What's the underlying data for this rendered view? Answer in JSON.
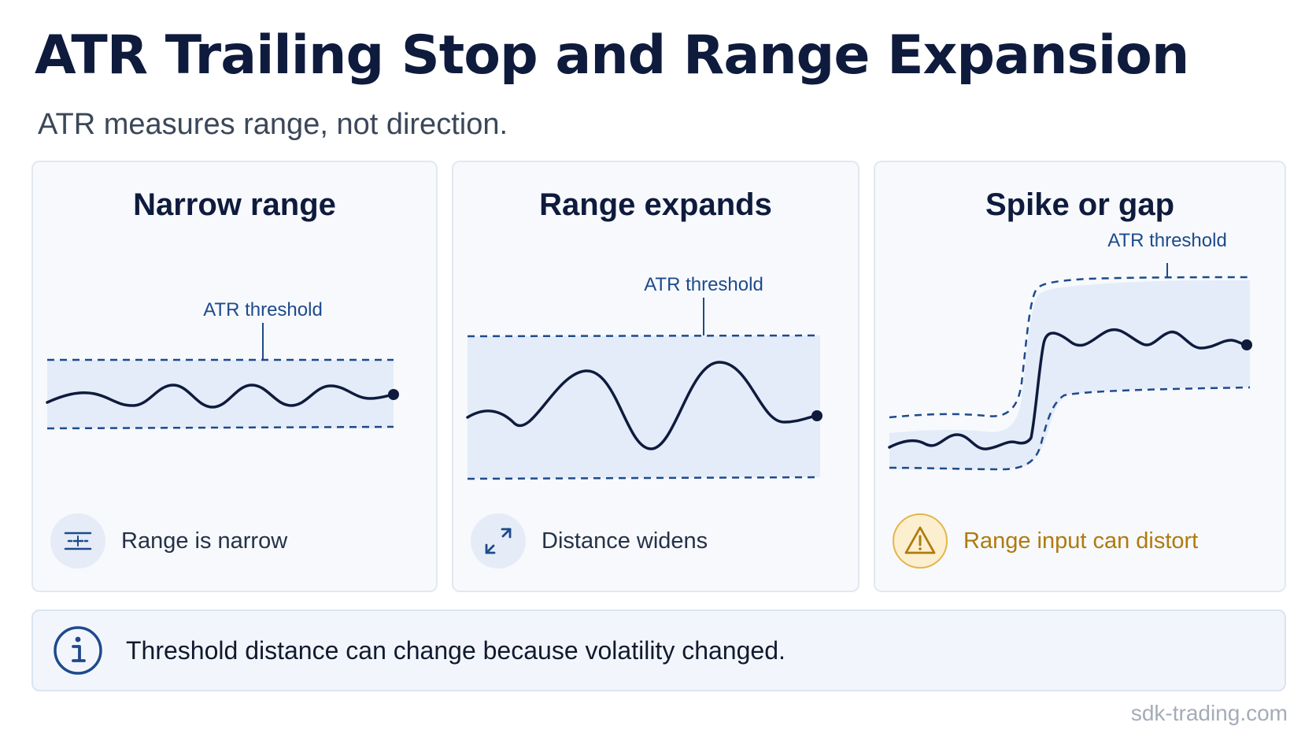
{
  "header": {
    "title": "ATR Trailing Stop and Range Expansion",
    "subtitle": "ATR measures range, not direction."
  },
  "panels": [
    {
      "title": "Narrow range",
      "threshold_label": "ATR threshold",
      "caption": "Range is narrow",
      "icon": "narrow-range-icon"
    },
    {
      "title": "Range expands",
      "threshold_label": "ATR threshold",
      "caption": "Distance widens",
      "icon": "expand-arrows-icon"
    },
    {
      "title": "Spike or gap",
      "threshold_label": "ATR threshold",
      "caption": "Range input can distort",
      "icon": "warning-icon"
    }
  ],
  "note": {
    "text": "Threshold distance can change because volatility changed.",
    "icon": "info-icon"
  },
  "footer": {
    "watermark": "sdk-trading.com"
  },
  "colors": {
    "line": "#0f1b3d",
    "band_fill": "#e3ecf8",
    "threshold": "#1e4a8c",
    "warning": "#b07a0e",
    "panel_bg": "#f7f9fc"
  }
}
